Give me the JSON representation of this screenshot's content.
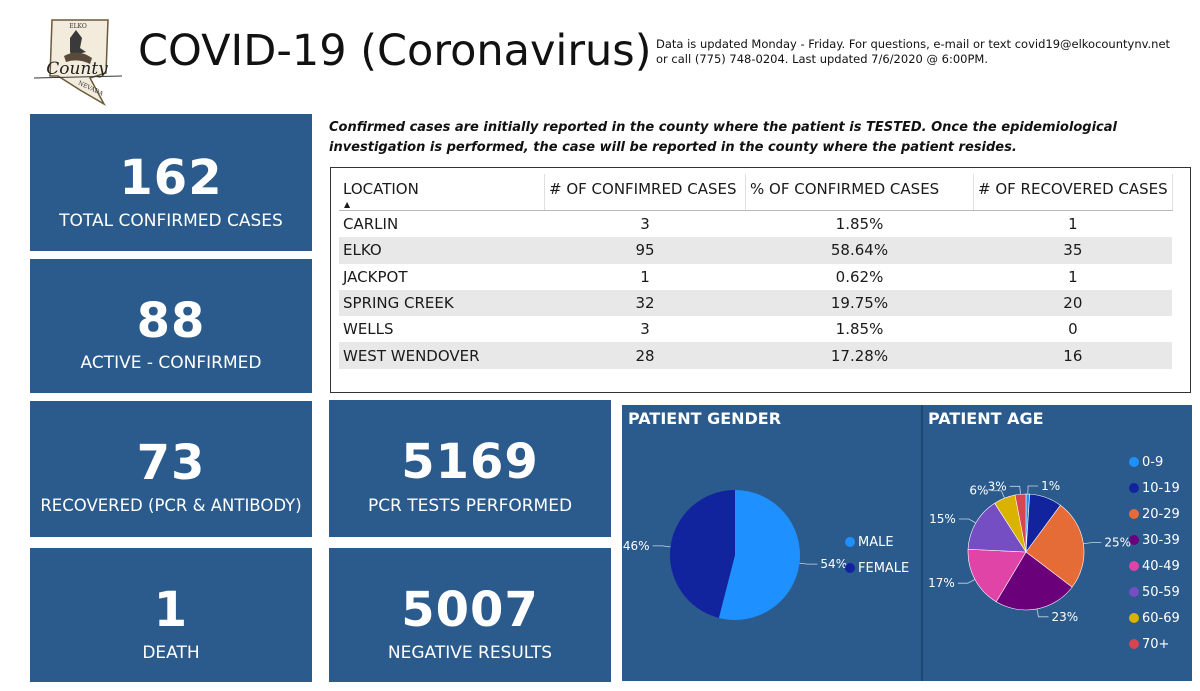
{
  "header": {
    "title": "COVID-19 (Coronavirus)",
    "info_line1": "Data is updated Monday - Friday.  For questions, e-mail or text covid19@elkocountynv.net",
    "info_line2": "or call (775) 748-0204.  Last updated 7/6/2020 @ 6:00PM.",
    "logo_text_top": "ELKO",
    "logo_text_main": "County",
    "logo_text_bottom": "NEVADA"
  },
  "cards": {
    "total": {
      "value": "162",
      "label": "TOTAL CONFIRMED CASES"
    },
    "active": {
      "value": "88",
      "label": "ACTIVE - CONFIRMED"
    },
    "recovered": {
      "value": "73",
      "label": "RECOVERED (PCR & ANTIBODY)"
    },
    "death": {
      "value": "1",
      "label": "DEATH"
    },
    "pcr": {
      "value": "5169",
      "label": "PCR TESTS PERFORMED"
    },
    "negative": {
      "value": "5007",
      "label": "NEGATIVE RESULTS"
    }
  },
  "note": {
    "line1": "Confirmed cases are initially reported in the county where the patient is TESTED.  Once the epidemiological",
    "line2": "investigation is performed, the case will be reported in the county where the patient resides."
  },
  "table": {
    "headers": [
      "LOCATION",
      "# OF CONFIMRED CASES",
      "% OF CONFIRMED CASES",
      "# OF RECOVERED CASES"
    ],
    "rows": [
      [
        "CARLIN",
        "3",
        "1.85%",
        "1"
      ],
      [
        "ELKO",
        "95",
        "58.64%",
        "35"
      ],
      [
        "JACKPOT",
        "1",
        "0.62%",
        "1"
      ],
      [
        "SPRING CREEK",
        "32",
        "19.75%",
        "20"
      ],
      [
        "WELLS",
        "3",
        "1.85%",
        "0"
      ],
      [
        "WEST WENDOVER",
        "28",
        "17.28%",
        "16"
      ]
    ]
  },
  "chart_data": [
    {
      "type": "pie",
      "title": "PATIENT GENDER",
      "categories": [
        "MALE",
        "FEMALE"
      ],
      "values": [
        54,
        46
      ],
      "labels": [
        "54%",
        "46%"
      ],
      "colors": [
        "#1e90ff",
        "#12239e"
      ],
      "legend_position": "right"
    },
    {
      "type": "pie",
      "title": "PATIENT AGE",
      "categories": [
        "0-9",
        "10-19",
        "20-29",
        "30-39",
        "40-49",
        "50-59",
        "60-69",
        "70+"
      ],
      "values": [
        1,
        9,
        25,
        23,
        17,
        15,
        6,
        3
      ],
      "labels": [
        "1%",
        "",
        "25%",
        "23%",
        "17%",
        "15%",
        "6%",
        "3%"
      ],
      "colors": [
        "#1e90ff",
        "#12239e",
        "#e66c37",
        "#6b007b",
        "#e044a7",
        "#744ec2",
        "#d9b300",
        "#d64550"
      ],
      "legend_position": "right"
    }
  ]
}
